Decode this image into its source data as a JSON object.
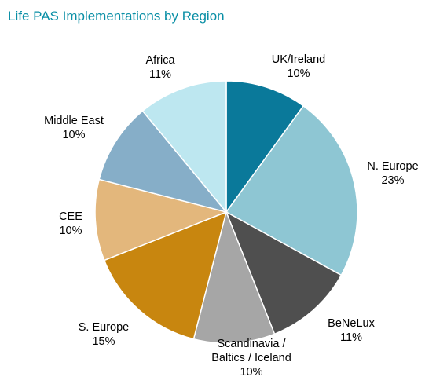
{
  "chart_data": {
    "type": "pie",
    "title": "Life PAS Implementations by Region",
    "title_color": "#0a8fa6",
    "start_angle_deg": 0,
    "direction": "clockwise",
    "slices": [
      {
        "label": "UK/Ireland",
        "value": 10,
        "value_label": "10%",
        "color": "#0a799a"
      },
      {
        "label": "N. Europe",
        "value": 23,
        "value_label": "23%",
        "color": "#8ec6d3"
      },
      {
        "label": "BeNeLux",
        "value": 11,
        "value_label": "11%",
        "color": "#4f4f4f"
      },
      {
        "label": "Scandinavia / Baltics / Iceland",
        "label_lines": [
          "Scandinavia /",
          "Baltics / Iceland"
        ],
        "value": 10,
        "value_label": "10%",
        "color": "#a6a6a6"
      },
      {
        "label": "S. Europe",
        "value": 15,
        "value_label": "15%",
        "color": "#c8860f"
      },
      {
        "label": "CEE",
        "value": 10,
        "value_label": "10%",
        "color": "#e3b77c"
      },
      {
        "label": "Middle East",
        "value": 10,
        "value_label": "10%",
        "color": "#86aec8"
      },
      {
        "label": "Africa",
        "value": 11,
        "value_label": "11%",
        "color": "#bde7f0"
      }
    ]
  }
}
